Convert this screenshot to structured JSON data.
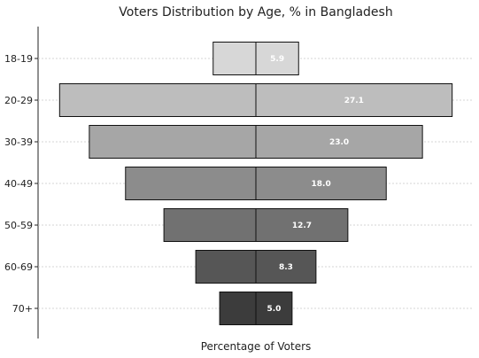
{
  "chart_data": {
    "type": "bar",
    "orientation": "horizontal",
    "layout": "population-pyramid",
    "title": "Voters Distribution by Age, % in Bangladesh",
    "xlabel": "Percentage of Voters",
    "ylabel": "",
    "categories": [
      "18-19",
      "20-29",
      "30-39",
      "40-49",
      "50-59",
      "60-69",
      "70+"
    ],
    "values": [
      5.9,
      27.1,
      23.0,
      18.0,
      12.7,
      8.3,
      5.0
    ],
    "data_labels": [
      "5.9",
      "27.1",
      "23.0",
      "18.0",
      "12.7",
      "8.3",
      "5.0"
    ],
    "xlim": [
      -30,
      30
    ],
    "grid": "horizontal dotted",
    "legend": "none",
    "colors": [
      "#d7d7d7",
      "#bdbdbd",
      "#a6a6a6",
      "#8c8c8c",
      "#717171",
      "#565656",
      "#3c3c3c"
    ]
  }
}
